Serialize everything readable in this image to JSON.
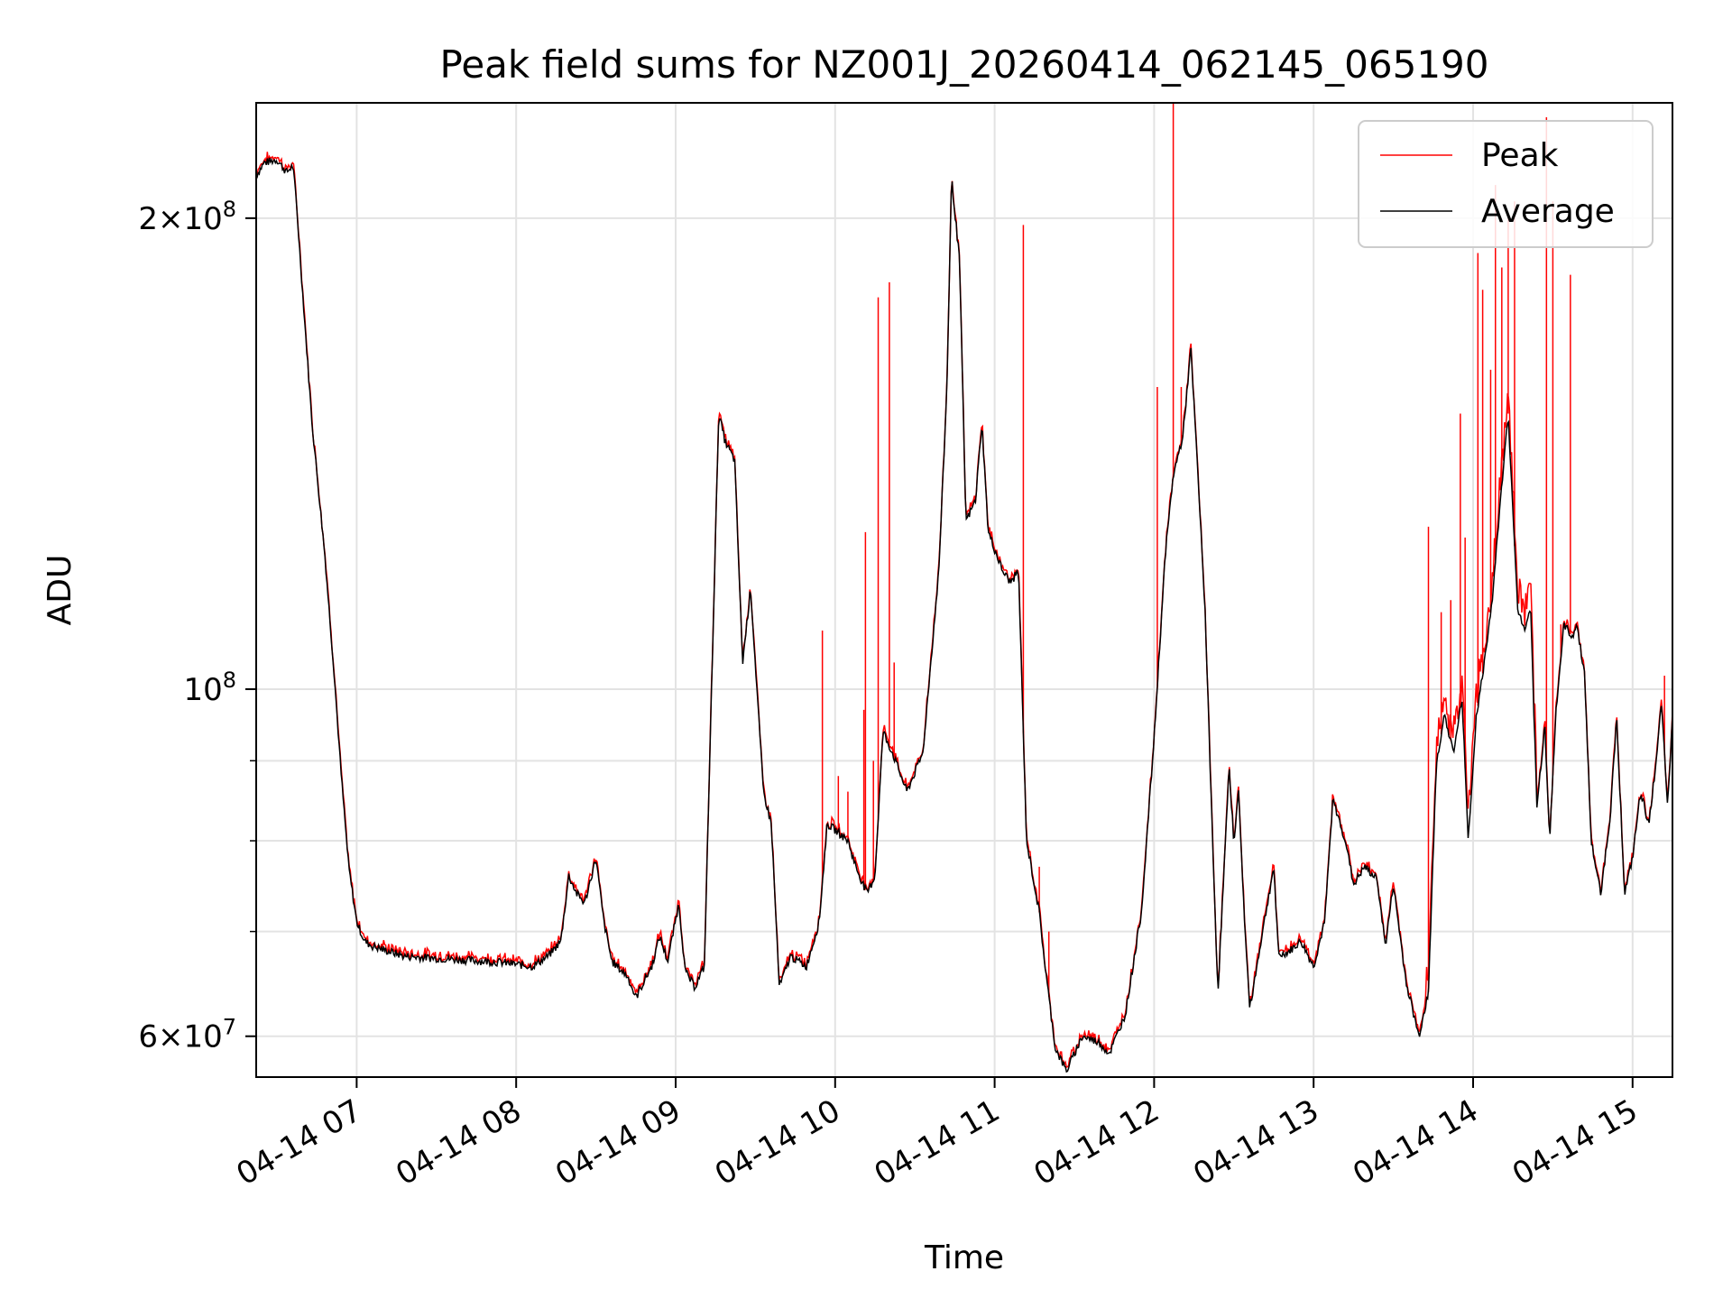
{
  "chart_data": {
    "type": "line",
    "title": "Peak field sums for NZ001J_20260414_062145_065190",
    "xlabel": "Time",
    "ylabel": "ADU",
    "yscale": "log",
    "xlim_hours": [
      6.37,
      15.25
    ],
    "ylim": [
      56500000,
      237000000
    ],
    "x_ticks": [
      {
        "value": 7,
        "label": "04-14 07"
      },
      {
        "value": 8,
        "label": "04-14 08"
      },
      {
        "value": 9,
        "label": "04-14 09"
      },
      {
        "value": 10,
        "label": "04-14 10"
      },
      {
        "value": 11,
        "label": "04-14 11"
      },
      {
        "value": 12,
        "label": "04-14 12"
      },
      {
        "value": 13,
        "label": "04-14 13"
      },
      {
        "value": 14,
        "label": "04-14 14"
      },
      {
        "value": 15,
        "label": "04-14 15"
      }
    ],
    "y_major_ticks": [
      {
        "value": 60000000,
        "mantissa": "6",
        "exp": "7"
      },
      {
        "value": 100000000,
        "mantissa": "",
        "exp": "8"
      },
      {
        "value": 200000000,
        "mantissa": "2",
        "exp": "8"
      }
    ],
    "y_minor_ticks": [
      70000000,
      80000000,
      90000000
    ],
    "grid": true,
    "legend_position": "top-right",
    "series": [
      {
        "name": "Peak",
        "color": "#ff0000",
        "spikes": [
          [
            9.92,
            109000000
          ],
          [
            10.02,
            88000000
          ],
          [
            10.08,
            86000000
          ],
          [
            10.18,
            97000000
          ],
          [
            10.19,
            126000000
          ],
          [
            10.24,
            90000000
          ],
          [
            10.27,
            178000000
          ],
          [
            10.34,
            182000000
          ],
          [
            10.37,
            104000000
          ],
          [
            11.18,
            198000000
          ],
          [
            11.28,
            77000000
          ],
          [
            11.34,
            70000000
          ],
          [
            12.02,
            156000000
          ],
          [
            12.12,
            237000000
          ],
          [
            12.17,
            156000000
          ],
          [
            13.72,
            127000000
          ],
          [
            13.8,
            112000000
          ],
          [
            13.86,
            114000000
          ],
          [
            13.92,
            150000000
          ],
          [
            13.95,
            125000000
          ],
          [
            14.03,
            190000000
          ],
          [
            14.06,
            180000000
          ],
          [
            14.11,
            160000000
          ],
          [
            14.14,
            210000000
          ],
          [
            14.18,
            186000000
          ],
          [
            14.22,
            200000000
          ],
          [
            14.26,
            205000000
          ],
          [
            14.46,
            232000000
          ],
          [
            14.5,
            205000000
          ],
          [
            14.55,
            110000000
          ],
          [
            14.61,
            184000000
          ],
          [
            15.2,
            102000000
          ]
        ]
      },
      {
        "name": "Average",
        "color": "#000000",
        "points": [
          [
            6.37,
            213000000
          ],
          [
            6.42,
            217000000
          ],
          [
            6.5,
            218000000
          ],
          [
            6.56,
            214000000
          ],
          [
            6.6,
            216000000
          ],
          [
            6.62,
            206000000
          ],
          [
            6.66,
            180000000
          ],
          [
            6.72,
            148000000
          ],
          [
            6.8,
            122000000
          ],
          [
            6.86,
            102000000
          ],
          [
            6.9,
            89000000
          ],
          [
            6.95,
            77000000
          ],
          [
            7.0,
            71000000
          ],
          [
            7.05,
            69000000
          ],
          [
            7.1,
            68500000
          ],
          [
            7.3,
            67500000
          ],
          [
            7.6,
            67200000
          ],
          [
            7.9,
            66900000
          ],
          [
            8.1,
            66500000
          ],
          [
            8.2,
            67500000
          ],
          [
            8.28,
            69000000
          ],
          [
            8.33,
            76000000
          ],
          [
            8.38,
            74000000
          ],
          [
            8.43,
            73000000
          ],
          [
            8.5,
            78000000
          ],
          [
            8.55,
            71000000
          ],
          [
            8.6,
            67000000
          ],
          [
            8.7,
            65500000
          ],
          [
            8.75,
            63500000
          ],
          [
            8.85,
            66500000
          ],
          [
            8.9,
            69500000
          ],
          [
            8.95,
            67000000
          ],
          [
            9.02,
            73000000
          ],
          [
            9.06,
            66000000
          ],
          [
            9.12,
            64500000
          ],
          [
            9.18,
            66500000
          ],
          [
            9.27,
            150000000
          ],
          [
            9.31,
            144000000
          ],
          [
            9.37,
            140000000
          ],
          [
            9.42,
            104000000
          ],
          [
            9.47,
            116000000
          ],
          [
            9.55,
            86000000
          ],
          [
            9.6,
            82000000
          ],
          [
            9.65,
            64500000
          ],
          [
            9.72,
            67500000
          ],
          [
            9.82,
            66500000
          ],
          [
            9.9,
            71000000
          ],
          [
            9.95,
            82000000
          ],
          [
            10.02,
            81000000
          ],
          [
            10.08,
            80000000
          ],
          [
            10.13,
            77000000
          ],
          [
            10.2,
            74000000
          ],
          [
            10.25,
            76000000
          ],
          [
            10.3,
            94000000
          ],
          [
            10.36,
            91000000
          ],
          [
            10.45,
            86000000
          ],
          [
            10.55,
            91000000
          ],
          [
            10.65,
            119000000
          ],
          [
            10.7,
            155000000
          ],
          [
            10.73,
            212000000
          ],
          [
            10.78,
            188000000
          ],
          [
            10.82,
            128000000
          ],
          [
            10.88,
            132000000
          ],
          [
            10.92,
            148000000
          ],
          [
            10.96,
            126000000
          ],
          [
            11.05,
            119000000
          ],
          [
            11.1,
            117000000
          ],
          [
            11.15,
            119000000
          ],
          [
            11.2,
            80000000
          ],
          [
            11.28,
            72000000
          ],
          [
            11.32,
            66000000
          ],
          [
            11.38,
            59000000
          ],
          [
            11.45,
            57000000
          ],
          [
            11.55,
            60000000
          ],
          [
            11.65,
            59500000
          ],
          [
            11.72,
            58500000
          ],
          [
            11.82,
            62000000
          ],
          [
            11.92,
            72000000
          ],
          [
            12.0,
            93000000
          ],
          [
            12.07,
            122000000
          ],
          [
            12.12,
            137000000
          ],
          [
            12.18,
            145000000
          ],
          [
            12.23,
            165000000
          ],
          [
            12.27,
            140000000
          ],
          [
            12.32,
            112000000
          ],
          [
            12.37,
            78000000
          ],
          [
            12.4,
            64000000
          ],
          [
            12.47,
            89000000
          ],
          [
            12.5,
            80000000
          ],
          [
            12.53,
            86000000
          ],
          [
            12.57,
            70000000
          ],
          [
            12.6,
            62500000
          ],
          [
            12.68,
            70000000
          ],
          [
            12.75,
            77000000
          ],
          [
            12.78,
            67500000
          ],
          [
            12.85,
            68000000
          ],
          [
            12.92,
            69000000
          ],
          [
            13.0,
            66500000
          ],
          [
            13.07,
            71000000
          ],
          [
            13.12,
            85000000
          ],
          [
            13.2,
            80000000
          ],
          [
            13.25,
            75000000
          ],
          [
            13.32,
            77000000
          ],
          [
            13.4,
            75500000
          ],
          [
            13.45,
            68500000
          ],
          [
            13.5,
            75000000
          ],
          [
            13.58,
            65000000
          ],
          [
            13.66,
            60000000
          ],
          [
            13.72,
            64000000
          ],
          [
            13.77,
            90000000
          ],
          [
            13.82,
            96000000
          ],
          [
            13.88,
            91000000
          ],
          [
            13.93,
            99000000
          ],
          [
            13.97,
            80000000
          ],
          [
            14.02,
            96000000
          ],
          [
            14.07,
            104000000
          ],
          [
            14.12,
            114000000
          ],
          [
            14.16,
            128000000
          ],
          [
            14.22,
            150000000
          ],
          [
            14.28,
            112000000
          ],
          [
            14.33,
            109000000
          ],
          [
            14.36,
            113000000
          ],
          [
            14.4,
            84000000
          ],
          [
            14.45,
            95000000
          ],
          [
            14.48,
            80000000
          ],
          [
            14.52,
            97000000
          ],
          [
            14.57,
            110000000
          ],
          [
            14.62,
            108000000
          ],
          [
            14.65,
            110000000
          ],
          [
            14.7,
            102000000
          ],
          [
            14.74,
            80000000
          ],
          [
            14.8,
            74000000
          ],
          [
            14.86,
            83000000
          ],
          [
            14.9,
            96000000
          ],
          [
            14.95,
            74000000
          ],
          [
            15.0,
            78000000
          ],
          [
            15.05,
            86000000
          ],
          [
            15.1,
            82000000
          ],
          [
            15.15,
            90000000
          ],
          [
            15.18,
            98000000
          ],
          [
            15.22,
            84000000
          ],
          [
            15.25,
            96000000
          ]
        ]
      }
    ]
  }
}
